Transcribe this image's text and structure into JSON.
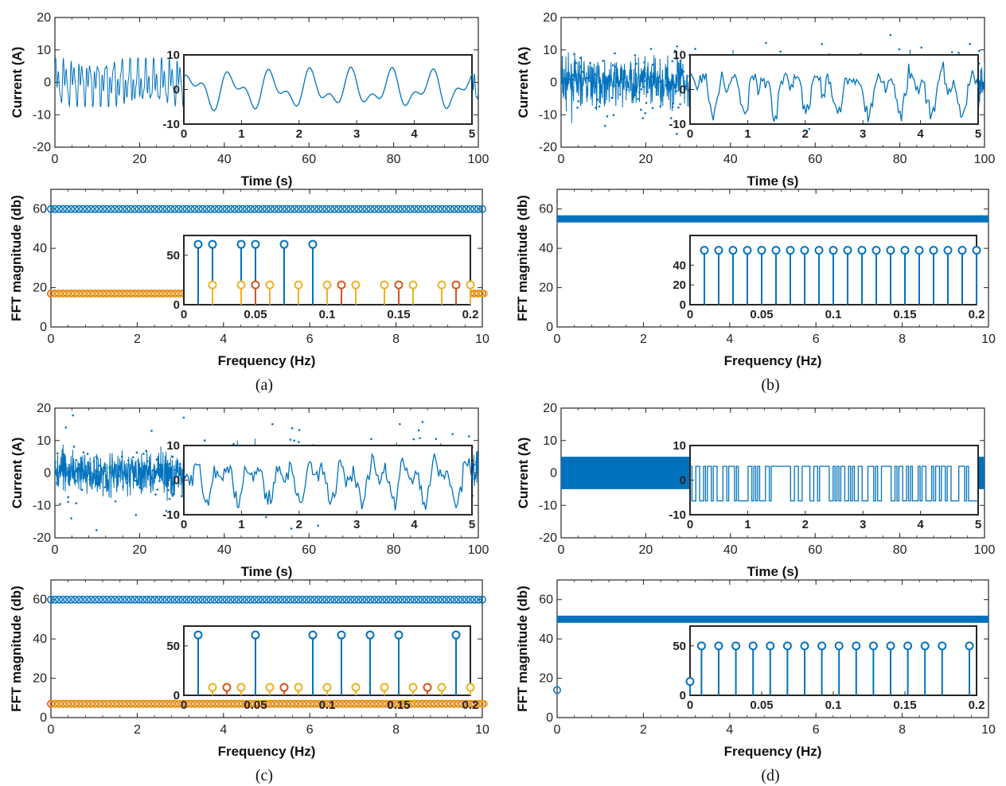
{
  "colors": {
    "blue": "#0072BD",
    "orange": "#D95319",
    "yellow": "#EDB120",
    "axis": "#262626"
  },
  "labels": {
    "time": "Time (s)",
    "current": "Current (A)",
    "frequency": "Frequency (Hz)",
    "fft": "FFT magnitude (db)"
  },
  "chart_data": [
    {
      "panel": "a",
      "caption": "(a)",
      "time": {
        "type": "line",
        "xlabel": "Time (s)",
        "ylabel": "Current (A)",
        "xlim": [
          0,
          100
        ],
        "ylim": [
          -20,
          20
        ],
        "xticks": [
          0,
          20,
          40,
          60,
          80,
          100
        ],
        "yticks": [
          -20,
          -10,
          0,
          10,
          20
        ],
        "signal": "random-multisine",
        "amplitude": 7.5,
        "inset": {
          "xlim": [
            0,
            5
          ],
          "ylim": [
            -10,
            10
          ],
          "xticks": [
            0,
            1,
            2,
            3,
            4,
            5
          ],
          "yticks": [
            -10,
            0,
            10
          ]
        }
      },
      "fft": {
        "type": "stem",
        "xlabel": "Frequency (Hz)",
        "ylabel": "FFT magnitude (db)",
        "xlim": [
          0,
          10
        ],
        "ylim": [
          0,
          70
        ],
        "xticks": [
          0,
          2,
          4,
          6,
          8,
          10
        ],
        "yticks": [
          0,
          20,
          40,
          60
        ],
        "series": [
          {
            "color": "blue",
            "value": 60
          },
          {
            "color": "orange",
            "value": 17
          }
        ],
        "inset": {
          "xlim": [
            0,
            0.2
          ],
          "ylim": [
            0,
            70
          ],
          "xticks": [
            0,
            0.05,
            0.1,
            0.15,
            0.2
          ],
          "yticks": [
            0,
            50
          ],
          "stems": [
            [
              0.01,
              61,
              "blue"
            ],
            [
              0.02,
              61,
              "blue"
            ],
            [
              0.04,
              61,
              "blue"
            ],
            [
              0.05,
              61,
              "blue"
            ],
            [
              0.07,
              61,
              "blue"
            ],
            [
              0.09,
              61,
              "blue"
            ],
            [
              0.02,
              20,
              "yellow"
            ],
            [
              0.04,
              20,
              "yellow"
            ],
            [
              0.05,
              20,
              "orange"
            ],
            [
              0.06,
              20,
              "yellow"
            ],
            [
              0.08,
              20,
              "yellow"
            ],
            [
              0.1,
              20,
              "yellow"
            ],
            [
              0.11,
              20,
              "orange"
            ],
            [
              0.12,
              20,
              "yellow"
            ],
            [
              0.14,
              20,
              "yellow"
            ],
            [
              0.15,
              20,
              "orange"
            ],
            [
              0.16,
              20,
              "yellow"
            ],
            [
              0.18,
              20,
              "yellow"
            ],
            [
              0.19,
              20,
              "orange"
            ],
            [
              0.2,
              20,
              "yellow"
            ]
          ]
        }
      }
    },
    {
      "panel": "b",
      "caption": "(b)",
      "time": {
        "type": "line",
        "xlabel": "Time (s)",
        "ylabel": "Current (A)",
        "xlim": [
          0,
          100
        ],
        "ylim": [
          -20,
          20
        ],
        "xticks": [
          0,
          20,
          40,
          60,
          80,
          100
        ],
        "yticks": [
          -20,
          -10,
          0,
          10,
          20
        ],
        "signal": "random-noise",
        "amplitude": 11,
        "inset": {
          "xlim": [
            0,
            5
          ],
          "ylim": [
            -10,
            10
          ],
          "xticks": [
            0,
            1,
            2,
            3,
            4,
            5
          ],
          "yticks": [
            -10,
            0,
            10
          ]
        }
      },
      "fft": {
        "type": "stem",
        "xlabel": "Frequency (Hz)",
        "ylabel": "FFT magnitude (db)",
        "xlim": [
          0,
          10
        ],
        "ylim": [
          0,
          70
        ],
        "xticks": [
          0,
          2,
          4,
          6,
          8,
          10
        ],
        "yticks": [
          0,
          20,
          40,
          60
        ],
        "series": [
          {
            "color": "blue",
            "value": 55
          }
        ],
        "inset": {
          "xlim": [
            0,
            0.2
          ],
          "ylim": [
            0,
            70
          ],
          "xticks": [
            0,
            0.05,
            0.1,
            0.15,
            0.2
          ],
          "yticks": [
            0,
            20,
            40
          ],
          "stems": [
            [
              0.01,
              55,
              "blue"
            ],
            [
              0.02,
              55,
              "blue"
            ],
            [
              0.03,
              55,
              "blue"
            ],
            [
              0.04,
              55,
              "blue"
            ],
            [
              0.05,
              55,
              "blue"
            ],
            [
              0.06,
              55,
              "blue"
            ],
            [
              0.07,
              55,
              "blue"
            ],
            [
              0.08,
              55,
              "blue"
            ],
            [
              0.09,
              55,
              "blue"
            ],
            [
              0.1,
              55,
              "blue"
            ],
            [
              0.11,
              55,
              "blue"
            ],
            [
              0.12,
              55,
              "blue"
            ],
            [
              0.13,
              55,
              "blue"
            ],
            [
              0.14,
              55,
              "blue"
            ],
            [
              0.15,
              55,
              "blue"
            ],
            [
              0.16,
              55,
              "blue"
            ],
            [
              0.17,
              55,
              "blue"
            ],
            [
              0.18,
              55,
              "blue"
            ],
            [
              0.19,
              55,
              "blue"
            ],
            [
              0.2,
              55,
              "blue"
            ]
          ]
        }
      }
    },
    {
      "panel": "c",
      "caption": "(c)",
      "time": {
        "type": "line",
        "xlabel": "Time (s)",
        "ylabel": "Current (A)",
        "xlim": [
          0,
          100
        ],
        "ylim": [
          -20,
          20
        ],
        "xticks": [
          0,
          20,
          40,
          60,
          80,
          100
        ],
        "yticks": [
          -20,
          -10,
          0,
          10,
          20
        ],
        "signal": "random-noise",
        "amplitude": 11,
        "inset": {
          "xlim": [
            0,
            5
          ],
          "ylim": [
            -10,
            10
          ],
          "xticks": [
            0,
            1,
            2,
            3,
            4,
            5
          ],
          "yticks": [
            -10,
            0,
            10
          ]
        }
      },
      "fft": {
        "type": "stem",
        "xlabel": "Frequency (Hz)",
        "ylabel": "FFT magnitude (db)",
        "xlim": [
          0,
          10
        ],
        "ylim": [
          0,
          70
        ],
        "xticks": [
          0,
          2,
          4,
          6,
          8,
          10
        ],
        "yticks": [
          0,
          20,
          40,
          60
        ],
        "series": [
          {
            "color": "blue",
            "value": 60
          },
          {
            "color": "orange",
            "value": 7
          }
        ],
        "inset": {
          "xlim": [
            0,
            0.2
          ],
          "ylim": [
            0,
            70
          ],
          "xticks": [
            0,
            0.05,
            0.1,
            0.15,
            0.2
          ],
          "yticks": [
            0,
            50
          ],
          "stems": [
            [
              0.01,
              61,
              "blue"
            ],
            [
              0.05,
              61,
              "blue"
            ],
            [
              0.09,
              61,
              "blue"
            ],
            [
              0.11,
              61,
              "blue"
            ],
            [
              0.13,
              61,
              "blue"
            ],
            [
              0.15,
              61,
              "blue"
            ],
            [
              0.19,
              61,
              "blue"
            ],
            [
              0.02,
              8,
              "yellow"
            ],
            [
              0.03,
              8,
              "orange"
            ],
            [
              0.04,
              8,
              "yellow"
            ],
            [
              0.06,
              8,
              "yellow"
            ],
            [
              0.07,
              8,
              "orange"
            ],
            [
              0.08,
              8,
              "yellow"
            ],
            [
              0.1,
              8,
              "yellow"
            ],
            [
              0.12,
              8,
              "yellow"
            ],
            [
              0.14,
              8,
              "yellow"
            ],
            [
              0.16,
              8,
              "yellow"
            ],
            [
              0.17,
              8,
              "orange"
            ],
            [
              0.18,
              8,
              "yellow"
            ],
            [
              0.2,
              8,
              "yellow"
            ]
          ]
        }
      }
    },
    {
      "panel": "d",
      "caption": "(d)",
      "time": {
        "type": "line",
        "xlabel": "Time (s)",
        "ylabel": "Current (A)",
        "xlim": [
          0,
          100
        ],
        "ylim": [
          -20,
          20
        ],
        "xticks": [
          0,
          20,
          40,
          60,
          80,
          100
        ],
        "yticks": [
          -20,
          -10,
          0,
          10,
          20
        ],
        "signal": "binary",
        "levels": [
          -5,
          5
        ],
        "inset": {
          "xlim": [
            0,
            5
          ],
          "ylim": [
            -10,
            10
          ],
          "xticks": [
            0,
            1,
            2,
            3,
            4,
            5
          ],
          "yticks": [
            -10,
            0,
            10
          ]
        }
      },
      "fft": {
        "type": "stem",
        "xlabel": "Frequency (Hz)",
        "ylabel": "FFT magnitude (db)",
        "xlim": [
          0,
          10
        ],
        "ylim": [
          0,
          70
        ],
        "xticks": [
          0,
          2,
          4,
          6,
          8,
          10
        ],
        "yticks": [
          0,
          20,
          40,
          60
        ],
        "series": [
          {
            "color": "blue",
            "value": 50
          }
        ],
        "dc": 14,
        "inset": {
          "xlim": [
            0,
            0.2
          ],
          "ylim": [
            0,
            70
          ],
          "xticks": [
            0,
            0.05,
            0.1,
            0.15,
            0.2
          ],
          "yticks": [
            0,
            50
          ],
          "stems": [
            [
              0,
              14,
              "blue"
            ],
            [
              0.008,
              50,
              "blue"
            ],
            [
              0.02,
              50,
              "blue"
            ],
            [
              0.032,
              50,
              "blue"
            ],
            [
              0.044,
              50,
              "blue"
            ],
            [
              0.056,
              50,
              "blue"
            ],
            [
              0.068,
              50,
              "blue"
            ],
            [
              0.08,
              50,
              "blue"
            ],
            [
              0.092,
              50,
              "blue"
            ],
            [
              0.104,
              50,
              "blue"
            ],
            [
              0.116,
              50,
              "blue"
            ],
            [
              0.128,
              50,
              "blue"
            ],
            [
              0.14,
              50,
              "blue"
            ],
            [
              0.152,
              50,
              "blue"
            ],
            [
              0.164,
              50,
              "blue"
            ],
            [
              0.176,
              50,
              "blue"
            ],
            [
              0.195,
              50,
              "blue"
            ]
          ]
        }
      }
    }
  ]
}
